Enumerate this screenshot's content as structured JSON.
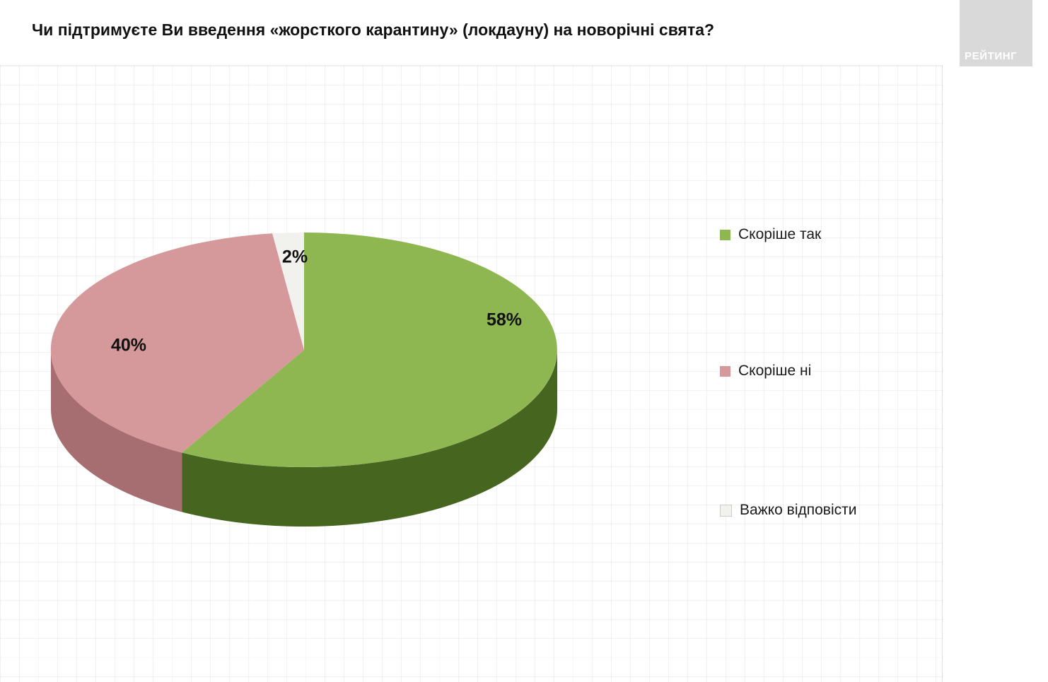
{
  "page": {
    "title": "Чи підтримуєте Ви введення «жорсткого карантину» (локдауну) на новорічні свята?",
    "logo_text": "РЕЙТИНГ"
  },
  "chart_data": {
    "type": "pie",
    "style": "3d",
    "title": "Чи підтримуєте Ви введення «жорсткого карантину» (локдауну) на новорічні свята?",
    "labels": [
      "Скоріше так",
      "Скоріше ні",
      "Важко відповісти"
    ],
    "values": [
      58,
      40,
      2
    ],
    "value_labels": [
      "58%",
      "40%",
      "2%"
    ],
    "colors": [
      "#8fb751",
      "#d6999b",
      "#f1f1ee"
    ],
    "side_colors": [
      "#46651f",
      "#a76e71",
      "#d8d8d4"
    ],
    "start_angle_deg": 0,
    "direction": "clockwise",
    "legend_position": "right",
    "grid": true
  },
  "legend": {
    "items": [
      {
        "label": "Скоріше так",
        "color": "#8fb751"
      },
      {
        "label": "Скоріше ні",
        "color": "#d6999b"
      },
      {
        "label": "Важко відповісти",
        "color": "#f1f1ee",
        "border": "#cccccc"
      }
    ]
  }
}
